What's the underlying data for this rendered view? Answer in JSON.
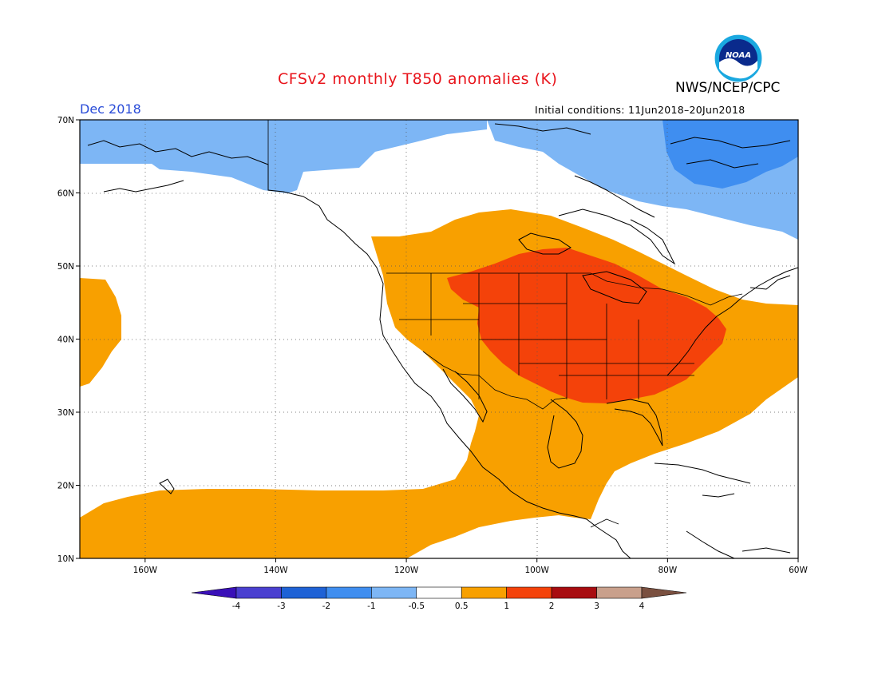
{
  "header": {
    "title": "CFSv2 monthly T850 anomalies (K)",
    "organization": "NWS/NCEP/CPC",
    "valid_month": "Dec 2018",
    "initial_conditions": "Initial conditions: 11Jun2018–20Jun2018",
    "logo_text": "NOAA"
  },
  "map": {
    "projection": "lat-lon",
    "lon_range": [
      -170,
      -60
    ],
    "lat_range": [
      10,
      70
    ],
    "lat_ticks": [
      {
        "value": 70,
        "label": "70N"
      },
      {
        "value": 60,
        "label": "60N"
      },
      {
        "value": 50,
        "label": "50N"
      },
      {
        "value": 40,
        "label": "40N"
      },
      {
        "value": 30,
        "label": "30N"
      },
      {
        "value": 20,
        "label": "20N"
      },
      {
        "value": 10,
        "label": "10N"
      }
    ],
    "lon_ticks": [
      {
        "value": -160,
        "label": "160W"
      },
      {
        "value": -140,
        "label": "140W"
      },
      {
        "value": -120,
        "label": "120W"
      },
      {
        "value": -100,
        "label": "100W"
      },
      {
        "value": -80,
        "label": "80W"
      },
      {
        "value": -60,
        "label": "60W"
      }
    ],
    "grid": "dotted"
  },
  "colorbar": {
    "labels": [
      "-4",
      "-3",
      "-2",
      "-1",
      "-0.5",
      "0.5",
      "1",
      "2",
      "3",
      "4"
    ],
    "colors": [
      "#3a10b8",
      "#4a3fd0",
      "#1e62d6",
      "#3f8ef0",
      "#7db6f5",
      "#ffffff",
      "#f8a000",
      "#f4420a",
      "#a80c10",
      "#c9a08c",
      "#7a5040"
    ]
  },
  "anomaly_regions": [
    {
      "category": "0.5 to 1",
      "color": "#f8a000",
      "area": "Western, central and eastern US, southern Canada, Mexico, Gulf of Mexico, western Atlantic, tropical eastern Pacific"
    },
    {
      "category": "1 to 2",
      "color": "#f4420a",
      "area": "Central US, Great Lakes, Ohio Valley, Mid-Atlantic, south-central Canada"
    },
    {
      "category": "-1 to -0.5",
      "color": "#7db6f5",
      "area": "Bering Sea, northern Alaska, eastern Canada, Davis Strait"
    },
    {
      "category": "-2 to -1",
      "color": "#3f8ef0",
      "area": "Baffin Bay area"
    }
  ]
}
